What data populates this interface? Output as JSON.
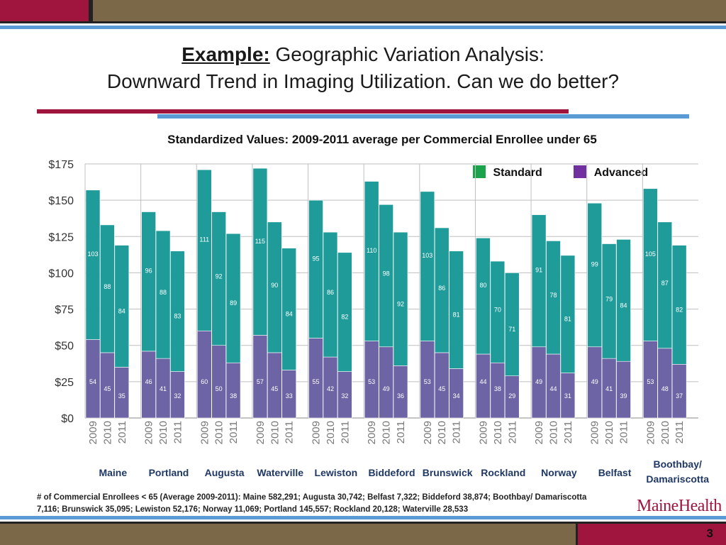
{
  "slide": {
    "title_lead": "Example:",
    "title_rest": " Geographic Variation Analysis:",
    "title_line2": "Downward Trend in Imaging Utilization.  Can we do better?",
    "footnote": "# of Commercial Enrollees < 65 (Average 2009-2011): Maine 582,291; Augusta 30,742; Belfast 7,322; Biddeford 38,874; Boothbay/ Damariscotta 7,116; Brunswick 35,095; Lewiston 52,176; Norway 11,069; Portland 145,557; Rockland 20,128; Waterville 28,533",
    "logo": "MaineHealth",
    "page_number": "3"
  },
  "colors": {
    "standard": "#1f9c9a",
    "advanced": "#6c64a4",
    "brand_red": "#a0153e",
    "brand_blue": "#5b9bd5",
    "brand_brown": "#7b6848"
  },
  "chart_data": {
    "type": "bar",
    "stacked": true,
    "title": "Standardized Values:  2009-2011 average  per Commercial Enrollee under 65",
    "ylim": [
      0,
      175
    ],
    "yticks": [
      "$0",
      "$25",
      "$50",
      "$75",
      "$100",
      "$125",
      "$150",
      "$175"
    ],
    "grid": true,
    "legend_position": "top-right",
    "years": [
      "2009",
      "2010",
      "2011"
    ],
    "groups": [
      "Maine",
      "Portland",
      "Augusta",
      "Waterville",
      "Lewiston",
      "Biddeford",
      "Brunswick",
      "Rockland",
      "Norway",
      "Belfast",
      "Boothbay/ Damariscotta"
    ],
    "series": [
      {
        "name": "Advanced",
        "values": [
          [
            54,
            45,
            35
          ],
          [
            46,
            41,
            32
          ],
          [
            60,
            50,
            38
          ],
          [
            57,
            45,
            33
          ],
          [
            55,
            42,
            32
          ],
          [
            53,
            49,
            36
          ],
          [
            53,
            45,
            34
          ],
          [
            44,
            38,
            29
          ],
          [
            49,
            44,
            31
          ],
          [
            49,
            41,
            39
          ],
          [
            53,
            48,
            37
          ]
        ]
      },
      {
        "name": "Standard",
        "values": [
          [
            103,
            88,
            84
          ],
          [
            96,
            88,
            83
          ],
          [
            111,
            92,
            89
          ],
          [
            115,
            90,
            84
          ],
          [
            95,
            86,
            82
          ],
          [
            110,
            98,
            92
          ],
          [
            103,
            86,
            81
          ],
          [
            80,
            70,
            71
          ],
          [
            91,
            78,
            81
          ],
          [
            99,
            79,
            84
          ],
          [
            105,
            87,
            82
          ]
        ]
      }
    ]
  }
}
